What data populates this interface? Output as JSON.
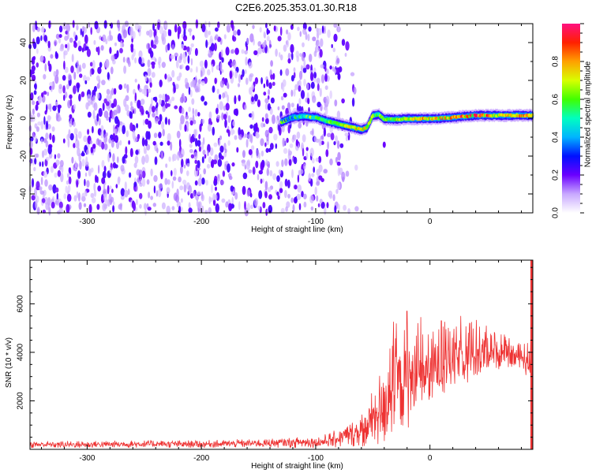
{
  "figure": {
    "title": "C2E6.2025.353.01.30.R18"
  },
  "chart_data": [
    {
      "type": "heatmap",
      "xlabel": "Height of straight line (km)",
      "ylabel": "Frequency (Hz)",
      "xlim": [
        -350,
        90
      ],
      "ylim": [
        -50,
        50
      ],
      "x_ticks": [
        -300,
        -200,
        -100,
        0
      ],
      "y_ticks": [
        -40,
        -20,
        0,
        20,
        40
      ],
      "colorbar": {
        "label": "Normalized spectral amplitude",
        "range": [
          0.0,
          1.0
        ],
        "ticks": [
          0.0,
          0.2,
          0.4,
          0.6,
          0.8
        ],
        "tick_labels": [
          "0.0",
          "0.2",
          "0.4",
          "0.6",
          "0.8"
        ]
      },
      "noise_region": {
        "x_range": [
          -350,
          -100
        ],
        "fade_x_range": [
          -100,
          -60
        ],
        "frequency_range": [
          -50,
          50
        ],
        "amplitude_range": [
          0.05,
          0.25
        ]
      },
      "signal_ridge": [
        {
          "x": -130,
          "freq": -2.0,
          "amplitude": 0.3
        },
        {
          "x": -120,
          "freq": 0.5,
          "amplitude": 0.4
        },
        {
          "x": -110,
          "freq": 1.0,
          "amplitude": 0.45
        },
        {
          "x": -100,
          "freq": 0.5,
          "amplitude": 0.55
        },
        {
          "x": -90,
          "freq": -1.5,
          "amplitude": 0.6
        },
        {
          "x": -80,
          "freq": -3.0,
          "amplitude": 0.65
        },
        {
          "x": -70,
          "freq": -4.5,
          "amplitude": 0.7
        },
        {
          "x": -60,
          "freq": -6.0,
          "amplitude": 0.75
        },
        {
          "x": -55,
          "freq": -5.0,
          "amplitude": 0.7
        },
        {
          "x": -50,
          "freq": 1.5,
          "amplitude": 0.6
        },
        {
          "x": -45,
          "freq": 2.0,
          "amplitude": 0.55
        },
        {
          "x": -40,
          "freq": -0.5,
          "amplitude": 0.6
        },
        {
          "x": -30,
          "freq": -0.5,
          "amplitude": 0.65
        },
        {
          "x": -20,
          "freq": -0.3,
          "amplitude": 0.7
        },
        {
          "x": -10,
          "freq": -0.3,
          "amplitude": 0.75
        },
        {
          "x": 0,
          "freq": -0.2,
          "amplitude": 0.8
        },
        {
          "x": 10,
          "freq": 0.0,
          "amplitude": 0.85
        },
        {
          "x": 20,
          "freq": 0.5,
          "amplitude": 0.85
        },
        {
          "x": 30,
          "freq": 1.0,
          "amplitude": 0.88
        },
        {
          "x": 40,
          "freq": 1.5,
          "amplitude": 0.95
        },
        {
          "x": 50,
          "freq": 1.5,
          "amplitude": 0.85
        },
        {
          "x": 60,
          "freq": 1.5,
          "amplitude": 0.8
        },
        {
          "x": 70,
          "freq": 1.5,
          "amplitude": 0.8
        },
        {
          "x": 80,
          "freq": 1.5,
          "amplitude": 0.85
        },
        {
          "x": 90,
          "freq": 1.5,
          "amplitude": 0.8
        }
      ]
    },
    {
      "type": "line",
      "xlabel": "Height of straight line (km)",
      "ylabel": "SNR (10 * v/v)",
      "xlim": [
        -350,
        90
      ],
      "ylim": [
        0,
        7800
      ],
      "x_ticks": [
        -300,
        -200,
        -100,
        0
      ],
      "y_ticks": [
        2000,
        4000,
        6000
      ],
      "line_color": "#ee3333",
      "series": [
        {
          "x": [
            -350,
            -300,
            -250,
            -200,
            -150,
            -100,
            -90,
            -80,
            -70,
            -60,
            -55,
            -50,
            -45,
            -40,
            -35,
            -30,
            -25,
            -20,
            -15,
            -10,
            -5,
            0,
            5,
            10,
            15,
            20,
            25,
            30,
            35,
            40,
            45,
            50,
            55,
            60,
            65,
            70,
            75,
            80,
            85,
            90
          ],
          "y": [
            200,
            200,
            220,
            220,
            250,
            300,
            350,
            450,
            600,
            800,
            1000,
            1300,
            1600,
            1900,
            2300,
            2600,
            2800,
            3000,
            2900,
            3100,
            3300,
            3200,
            3400,
            3600,
            3500,
            3800,
            3700,
            3900,
            3800,
            4000,
            3900,
            4000,
            4100,
            4000,
            3900,
            4000,
            3800,
            3900,
            3600,
            3900
          ],
          "spread": [
            150,
            150,
            160,
            160,
            180,
            250,
            300,
            400,
            500,
            700,
            900,
            1200,
            1500,
            1800,
            2000,
            2100,
            2000,
            2200,
            1800,
            1700,
            1600,
            1600,
            1600,
            1500,
            1500,
            1400,
            1300,
            1300,
            1200,
            1100,
            1000,
            900,
            800,
            700,
            600,
            600,
            500,
            500,
            800,
            1000
          ]
        }
      ],
      "annotations": [
        {
          "x": -20,
          "y": 5700
        },
        {
          "x": 10,
          "y": 5300
        },
        {
          "x": 35,
          "y": 5200
        }
      ]
    }
  ]
}
